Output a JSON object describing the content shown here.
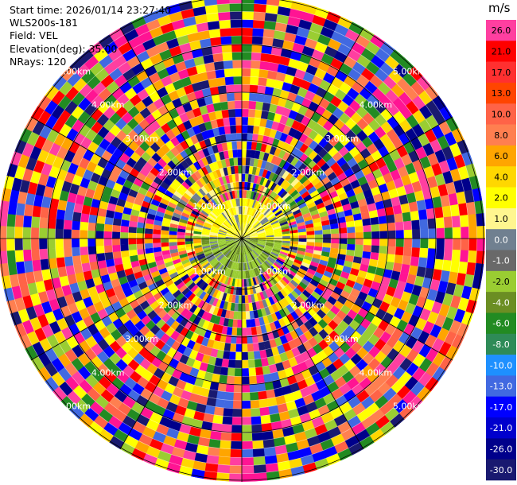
{
  "header": {
    "start_time": "Start time: 2026/01/14 23:27:40",
    "instrument": "WLS200s-181",
    "field": "Field: VEL",
    "elevation": "Elevation(deg): 35.00",
    "nrays": "NRays: 120"
  },
  "chart_data": {
    "type": "heatmap",
    "projection": "polar-ppi",
    "title": "",
    "field": "VEL",
    "elevation_deg": 35.0,
    "n_rays": 120,
    "range_rings": [
      {
        "label": "1.00km"
      },
      {
        "label": "2.00km"
      },
      {
        "label": "3.00km"
      },
      {
        "label": "4.00km"
      },
      {
        "label": "5.00km"
      }
    ],
    "colorbar": {
      "unit": "m/s",
      "levels": [
        {
          "label": "26.0",
          "color": "#ff3fa0"
        },
        {
          "label": "21.0",
          "color": "#ff0000"
        },
        {
          "label": "17.0",
          "color": "#ff3030"
        },
        {
          "label": "13.0",
          "color": "#ff4500"
        },
        {
          "label": "10.0",
          "color": "#ff6347"
        },
        {
          "label": "8.0",
          "color": "#ff7f50"
        },
        {
          "label": "6.0",
          "color": "#ffa500"
        },
        {
          "label": "4.0",
          "color": "#ffd700"
        },
        {
          "label": "2.0",
          "color": "#ffff00"
        },
        {
          "label": "1.0",
          "color": "#fff68f"
        },
        {
          "label": "0.0",
          "color": "#708090"
        },
        {
          "label": "-1.0",
          "color": "#696969"
        },
        {
          "label": "-2.0",
          "color": "#9acd32"
        },
        {
          "label": "-4.0",
          "color": "#6b8e23"
        },
        {
          "label": "-6.0",
          "color": "#228b22"
        },
        {
          "label": "-8.0",
          "color": "#2e8b57"
        },
        {
          "label": "-10.0",
          "color": "#1e90ff"
        },
        {
          "label": "-13.0",
          "color": "#4169e1"
        },
        {
          "label": "-17.0",
          "color": "#0000ff"
        },
        {
          "label": "-21.0",
          "color": "#0000cd"
        },
        {
          "label": "-26.0",
          "color": "#00008b"
        },
        {
          "label": "-30.0",
          "color": "#191970"
        }
      ]
    },
    "noise_palette": [
      "#ff1493",
      "#ff0000",
      "#ff3fa0",
      "#ffff00",
      "#0000ff",
      "#00008b",
      "#191970",
      "#4169e1",
      "#228b22",
      "#9acd32",
      "#ff7f50",
      "#ffa500",
      "#ffd700",
      "#ff6347"
    ],
    "core_palette": [
      "#ffff00",
      "#fff68f",
      "#ffd700",
      "#9acd32",
      "#6b8e23",
      "#708090",
      "#ffa500"
    ]
  }
}
